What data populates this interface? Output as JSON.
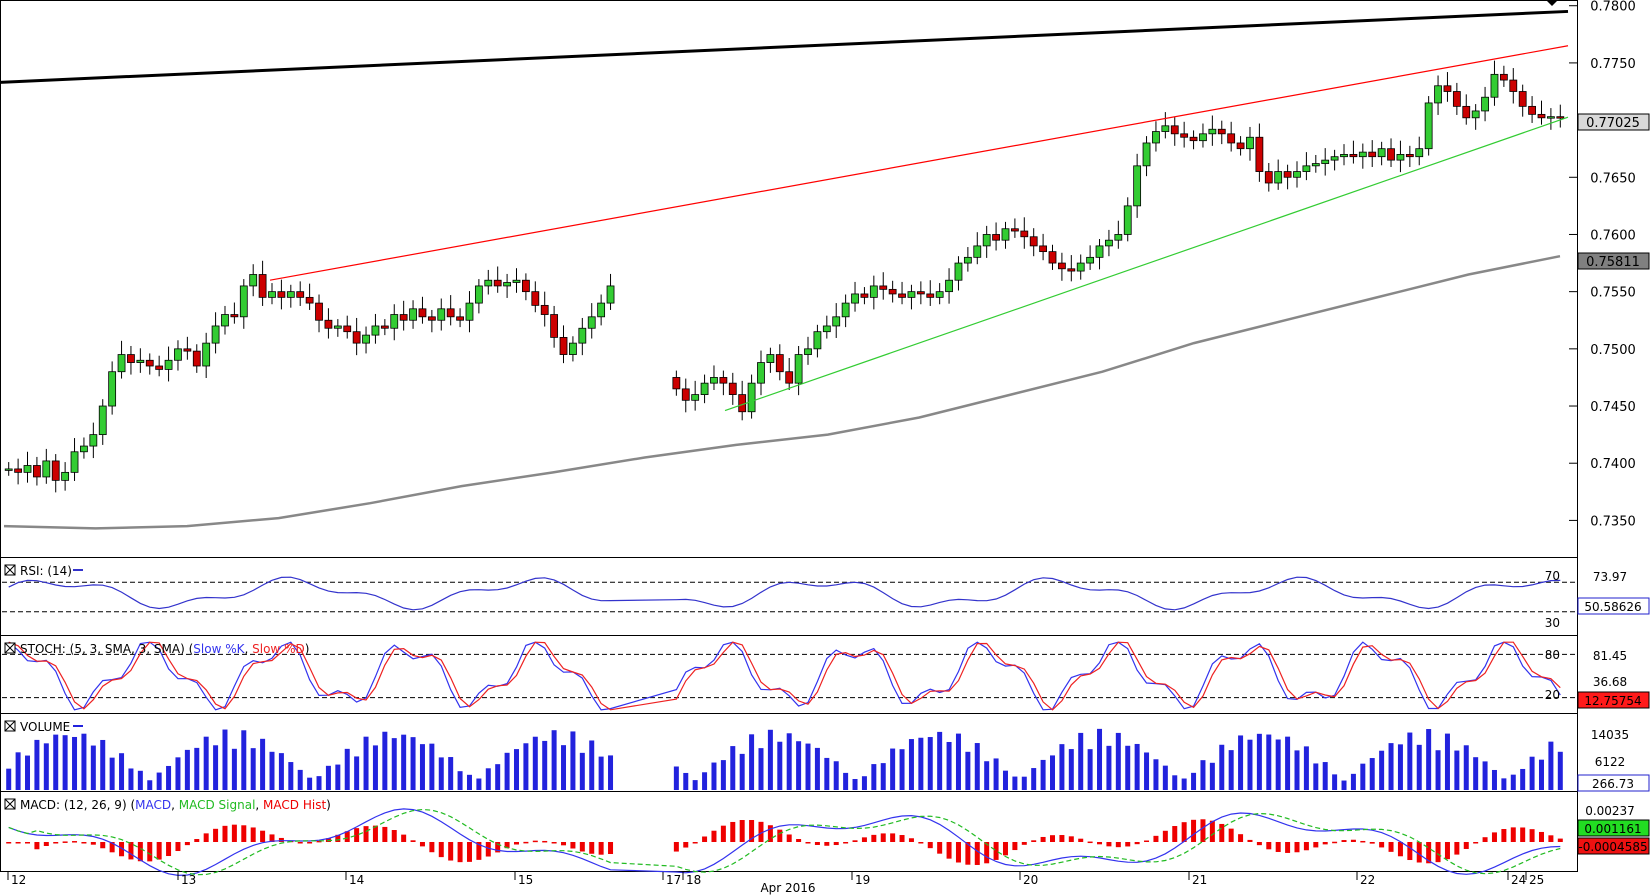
{
  "panels": {
    "rsi": {
      "label": "RSI: (14)",
      "levels": [
        "70",
        "30"
      ],
      "right_labels": [
        "73.97"
      ],
      "badge": "50.58626"
    },
    "stoch": {
      "label": "STOCH: (5, 3, SMA, 3, SMA)",
      "legend": [
        "Slow %K",
        "Slow %D"
      ],
      "levels": [
        "80",
        "20"
      ],
      "right_labels": [
        "81.45",
        "36.68"
      ],
      "badge": "12.75754"
    },
    "volume": {
      "label": "VOLUME",
      "right_labels": [
        "14035",
        "6122"
      ],
      "badge": "266.73"
    },
    "macd": {
      "label": "MACD: (12, 26, 9)",
      "legend": [
        "MACD",
        "MACD Signal",
        "MACD Hist"
      ],
      "right_labels": [
        "0.00237"
      ],
      "badge_pos": "0.001161",
      "badge_neg": "-0.0004585"
    }
  },
  "xaxis": {
    "days": [
      "12",
      "13",
      "14",
      "15",
      "17",
      "18",
      "19",
      "20",
      "21",
      "22",
      "24",
      "25"
    ],
    "month_label": "Apr 2016"
  },
  "colors": {
    "up": "#33cc33",
    "down": "#cc0000",
    "resistance": "#ff0000",
    "support": "#33cc33",
    "ma": "#888888",
    "rsi": "#3333cc",
    "stoch_k": "#3333ee",
    "stoch_d": "#ee2222",
    "volume": "#2222dd",
    "macd": "#3333ee",
    "signal": "#22bb22",
    "hist": "#ee0000"
  },
  "chart_data": {
    "type": "candlestick",
    "yaxis": {
      "ticks": [
        "0.7800",
        "0.7750",
        "0.7650",
        "0.7600",
        "0.7550",
        "0.7500",
        "0.7450",
        "0.7400",
        "0.7350"
      ],
      "ylim": [
        0.7318,
        0.7805
      ]
    },
    "last_price": "0.77025",
    "ma_label": "0.75811",
    "ohlc_segments": [
      {
        "start_price": 0.7395,
        "closes": [
          0.7395,
          0.7392,
          0.7398,
          0.7388,
          0.7402,
          0.7385,
          0.7392,
          0.741,
          0.7415,
          0.7425,
          0.745,
          0.748,
          0.7495,
          0.7488,
          0.749,
          0.7485,
          0.7482,
          0.749,
          0.75,
          0.7498,
          0.7485,
          0.7505,
          0.752,
          0.753,
          0.7528,
          0.7555,
          0.7565,
          0.7545,
          0.755,
          0.7545,
          0.755,
          0.7545,
          0.754,
          0.7525,
          0.7518,
          0.752,
          0.7515,
          0.7505,
          0.7512,
          0.752,
          0.7518,
          0.753,
          0.7525,
          0.7535,
          0.7528,
          0.7525,
          0.7535,
          0.7528,
          0.7525,
          0.754,
          0.7555,
          0.756,
          0.7555,
          0.7558,
          0.756,
          0.755,
          0.7538,
          0.753,
          0.751,
          0.7495,
          0.7505,
          0.7518,
          0.7528,
          0.754,
          0.7555
        ]
      },
      {
        "start_price": 0.7475,
        "closes": [
          0.7465,
          0.7455,
          0.746,
          0.747,
          0.7475,
          0.747,
          0.746,
          0.7445,
          0.747,
          0.7488,
          0.7495,
          0.748,
          0.747,
          0.7495,
          0.75,
          0.7515,
          0.752,
          0.7528,
          0.754,
          0.7548,
          0.7545,
          0.7555,
          0.7552,
          0.7548,
          0.7545,
          0.755,
          0.7548,
          0.7545,
          0.755,
          0.756,
          0.7575,
          0.758,
          0.759,
          0.76,
          0.7595,
          0.7605,
          0.7603,
          0.7598,
          0.759,
          0.7585,
          0.7575,
          0.757,
          0.7568,
          0.7575,
          0.758,
          0.759,
          0.7595,
          0.76,
          0.7625,
          0.766,
          0.768,
          0.769,
          0.7695,
          0.7688,
          0.7685,
          0.7682,
          0.7688,
          0.7692,
          0.7688,
          0.768,
          0.7675,
          0.7685,
          0.7655,
          0.7645,
          0.7655,
          0.765,
          0.7655,
          0.766,
          0.7662,
          0.7665,
          0.7668,
          0.767,
          0.7668,
          0.7672,
          0.7668,
          0.7675,
          0.7665,
          0.767,
          0.7668,
          0.7675,
          0.7715,
          0.773,
          0.7725,
          0.7712,
          0.7702,
          0.7708,
          0.772,
          0.774,
          0.7735,
          0.7725,
          0.7712,
          0.7705,
          0.7702,
          0.7703,
          0.77025
        ]
      }
    ],
    "trendlines": [
      {
        "name": "resistance",
        "from": [
          "13 (2nd half)",
          0.756
        ],
        "to": [
          "25",
          0.7765
        ]
      },
      {
        "name": "support",
        "from": [
          "18",
          0.7445
        ],
        "to": [
          "25",
          0.77025
        ]
      },
      {
        "name": "long-term",
        "from": [
          "12",
          0.7733
        ],
        "to": [
          "25",
          0.7795
        ]
      }
    ],
    "ma_curve": [
      0.7345,
      0.7343,
      0.7345,
      0.7352,
      0.7365,
      0.738,
      0.7392,
      0.7405,
      0.7416,
      0.7425,
      0.744,
      0.746,
      0.748,
      0.7505,
      0.7525,
      0.7545,
      0.7565,
      0.7581
    ]
  }
}
